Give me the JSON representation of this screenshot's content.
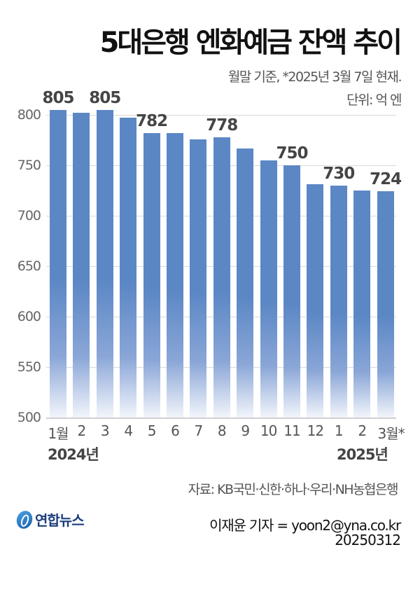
{
  "header": {
    "title": "5대은행 엔화예금 잔액 추이",
    "note": "월말 기준, *2025년 3월 7일 현재.",
    "unit": "단위: 억 엔"
  },
  "chart_data": {
    "type": "bar",
    "title": "5대은행 엔화예금 잔액 추이",
    "subtitle": "월말 기준, *2025년 3월 7일 현재. 단위: 억 엔",
    "xlabel": "",
    "ylabel": "억 엔",
    "categories": [
      "1월",
      "2",
      "3",
      "4",
      "5",
      "6",
      "7",
      "8",
      "9",
      "10",
      "11",
      "12",
      "1",
      "2",
      "3월*"
    ],
    "years": [
      {
        "label": "2024년",
        "start_index": 0
      },
      {
        "label": "2025년",
        "start_index": 12
      }
    ],
    "values": [
      805,
      802,
      805,
      797,
      782,
      782,
      776,
      778,
      767,
      755,
      750,
      731,
      730,
      725,
      724
    ],
    "data_labels": [
      "805",
      "",
      "805",
      "",
      "782",
      "",
      "",
      "778",
      "",
      "",
      "750",
      "",
      "730",
      "",
      "724"
    ],
    "yticks": [
      500,
      550,
      600,
      650,
      700,
      750,
      800
    ],
    "ylim": [
      500,
      810
    ],
    "grid": true,
    "legend": "none",
    "bar_color": "#5b87c5"
  },
  "footer": {
    "source": "자료: KB국민·신한·하나·우리·NH농협은행",
    "logo_text": "연합뉴스",
    "credit": "이재윤 기자 = yoon2@yna.co.kr",
    "date": "20250312"
  }
}
